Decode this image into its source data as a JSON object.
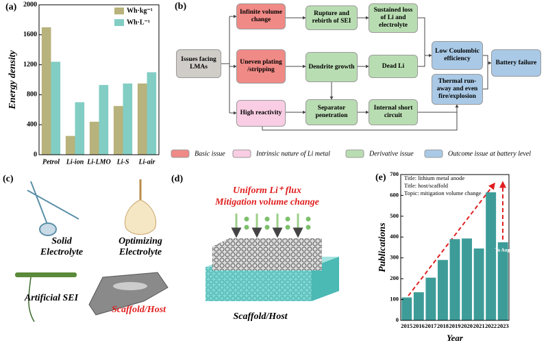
{
  "chart_data": [
    {
      "type": "bar",
      "label": "(a)",
      "ylabel": "Energy density",
      "categories": [
        "Petrol",
        "Li-ion",
        "Li-LMO",
        "Li-S",
        "Li-air"
      ],
      "series": [
        {
          "name": "Wh·kg⁻¹",
          "color": "#b8b27c",
          "values": [
            1700,
            250,
            440,
            650,
            950
          ]
        },
        {
          "name": "Wh·L⁻¹",
          "color": "#82cdc4",
          "values": [
            1240,
            700,
            930,
            950,
            1100
          ]
        }
      ],
      "ylim": [
        0,
        2000
      ],
      "yticks": [
        0,
        400,
        800,
        1200,
        1600,
        2000
      ],
      "legend": "upper-right"
    },
    {
      "type": "bar",
      "label": "(e)",
      "xlabel": "Year",
      "ylabel": "Publications",
      "categories": [
        "2015",
        "2016",
        "2017",
        "2018",
        "2019",
        "2020",
        "2021",
        "2022",
        "2023"
      ],
      "values": [
        110,
        135,
        205,
        290,
        390,
        393,
        345,
        615,
        375
      ],
      "color": "#3d9c98",
      "ylim": [
        0,
        700
      ],
      "yticks": [
        0,
        100,
        200,
        300,
        400,
        500,
        600,
        700
      ],
      "annotations": [
        "Title: lithium metal anode",
        "Title:  host/scaffold",
        "Topic: mitigation volume change"
      ],
      "note": "To Aug."
    }
  ],
  "flowchart": {
    "label": "(b)",
    "kinds": {
      "basic": "#f08a86",
      "intrinsic": "#f9cde3",
      "derivative": "#b9ddb2",
      "outcome": "#a9c9e6",
      "root": "#d0cdc9"
    },
    "nodes": [
      {
        "label": "Issues facing LMAs",
        "kind": "root"
      },
      {
        "label": "Infinite volume change",
        "kind": "basic"
      },
      {
        "label": "Rupture and rebirth of SEI",
        "kind": "derivative"
      },
      {
        "label": "Sustained loss of Li and electrolyte",
        "kind": "derivative"
      },
      {
        "label": "Uneven plating /stripping",
        "kind": "basic"
      },
      {
        "label": "Dendrite growth",
        "kind": "derivative"
      },
      {
        "label": "Dead Li",
        "kind": "derivative"
      },
      {
        "label": "High reactivity",
        "kind": "intrinsic"
      },
      {
        "label": "Separator penetration",
        "kind": "derivative"
      },
      {
        "label": "Internal short circuit",
        "kind": "derivative"
      },
      {
        "label": "Low Coulombic efficiency",
        "kind": "outcome"
      },
      {
        "label": "Thermal run-away and even fire/explosion",
        "kind": "outcome"
      },
      {
        "label": "Battery failure",
        "kind": "outcome"
      }
    ],
    "legend": [
      {
        "label": "Basic issue",
        "kind": "basic"
      },
      {
        "label": "Intrinsic nature of Li metal",
        "kind": "intrinsic"
      },
      {
        "label": "Derivative issue",
        "kind": "derivative"
      },
      {
        "label": "Outcome issue at battery level",
        "kind": "outcome"
      }
    ]
  },
  "illustrations": {
    "c": {
      "label": "(c)",
      "items": [
        "Solid Electrolyte",
        "Optimizing Electrolyte",
        "Artificial SEI",
        "Scaffold/Host"
      ]
    },
    "d": {
      "label": "(d)",
      "flux": "Uniform Li⁺ flux",
      "mitigation": "Mitigation volume change",
      "caption": "Scaffold/Host"
    }
  }
}
